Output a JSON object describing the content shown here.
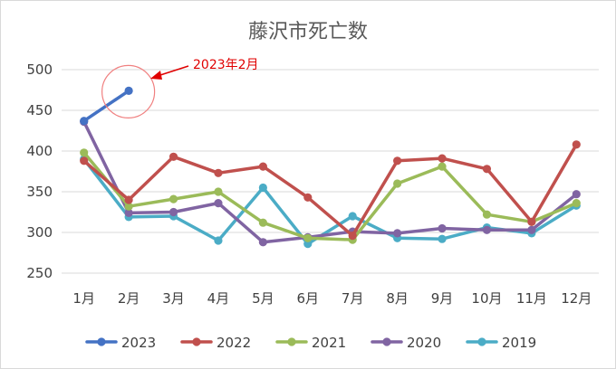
{
  "chart_data": {
    "type": "line",
    "title": "藤沢市死亡数",
    "xlabel": "",
    "ylabel": "",
    "categories": [
      "1月",
      "2月",
      "3月",
      "4月",
      "5月",
      "6月",
      "7月",
      "8月",
      "9月",
      "10月",
      "11月",
      "12月"
    ],
    "ylim": [
      250,
      500
    ],
    "yticks": [
      250,
      300,
      350,
      400,
      450,
      500
    ],
    "grid": true,
    "legend_position": "bottom",
    "series": [
      {
        "name": "2023",
        "color": "#4472c4",
        "values": [
          437,
          474,
          null,
          null,
          null,
          null,
          null,
          null,
          null,
          null,
          null,
          null
        ]
      },
      {
        "name": "2022",
        "color": "#c0504d",
        "values": [
          388,
          340,
          393,
          373,
          381,
          343,
          296,
          388,
          391,
          378,
          313,
          408
        ]
      },
      {
        "name": "2021",
        "color": "#9bbb59",
        "values": [
          398,
          332,
          341,
          350,
          312,
          293,
          291,
          360,
          381,
          322,
          313,
          336
        ]
      },
      {
        "name": "2020",
        "color": "#8064a2",
        "values": [
          436,
          324,
          325,
          336,
          288,
          294,
          301,
          299,
          305,
          303,
          303,
          347
        ]
      },
      {
        "name": "2019",
        "color": "#4bacc6",
        "values": [
          390,
          319,
          320,
          290,
          355,
          286,
          320,
          293,
          292,
          306,
          299,
          333
        ]
      }
    ],
    "annotation": {
      "text": "2023年2月",
      "color": "#e00000",
      "series": "2023",
      "category": "2月"
    }
  }
}
